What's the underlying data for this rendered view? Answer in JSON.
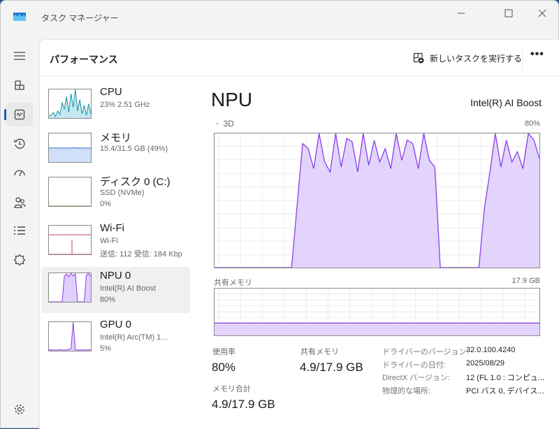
{
  "window": {
    "title": "タスク マネージャー"
  },
  "nav": {
    "items": [
      {
        "name": "menu",
        "icon": "hamburger-icon"
      },
      {
        "name": "processes",
        "icon": "processes-icon"
      },
      {
        "name": "performance",
        "icon": "performance-icon",
        "selected": true
      },
      {
        "name": "app-history",
        "icon": "history-icon"
      },
      {
        "name": "startup",
        "icon": "startup-gauge-icon"
      },
      {
        "name": "users",
        "icon": "users-icon"
      },
      {
        "name": "details",
        "icon": "list-icon"
      },
      {
        "name": "services",
        "icon": "services-icon"
      },
      {
        "name": "settings",
        "icon": "gear-icon"
      }
    ]
  },
  "header": {
    "title": "パフォーマンス",
    "run_task": "新しいタスクを実行する",
    "more": "•••"
  },
  "devices": [
    {
      "name": "CPU",
      "sub1": "23%  2.51 GHz",
      "sub2": "",
      "color": "#1b8fa8",
      "fill": "#c5e8ef",
      "spark": [
        3,
        4,
        8,
        2,
        10,
        5,
        22,
        12,
        30,
        8,
        34,
        15,
        40,
        10,
        26,
        6,
        18,
        4,
        20,
        6
      ]
    },
    {
      "name": "メモリ",
      "sub1": "15.4/31.5 GB (49%)",
      "sub2": "",
      "color": "#2f6fd1",
      "fill": "#cfe0f8",
      "spark": [
        49,
        49,
        49,
        49,
        49,
        49,
        49,
        49,
        49,
        49,
        49,
        50,
        49,
        49,
        49,
        49,
        49,
        49,
        49,
        49
      ]
    },
    {
      "name": "ディスク 0 (C:)",
      "sub1": "SSD (NVMe)",
      "sub2": "0%",
      "color": "#4f8f2f",
      "fill": "#dbeed0",
      "spark": [
        0,
        0,
        0,
        0,
        0,
        0,
        0,
        0,
        0,
        0,
        0,
        0,
        0,
        0,
        0,
        0,
        0,
        0,
        0,
        0
      ]
    },
    {
      "name": "Wi-Fi",
      "sub1": "Wi-Fi",
      "sub2": "送信: 112 受信: 184 Kbp",
      "color": "#c2456d",
      "fill": "#f5d3de",
      "spark": [
        0,
        0,
        0,
        0,
        0,
        0,
        0,
        0,
        0,
        0,
        0,
        0,
        0,
        0,
        0,
        0,
        0,
        0,
        0,
        0
      ]
    },
    {
      "name": "NPU 0",
      "sub1": "Intel(R) AI Boost",
      "sub2": "80%",
      "color": "#8b3de8",
      "fill": "#e0cffd",
      "selected": true,
      "spark": [
        0,
        0,
        0,
        0,
        0,
        0,
        0,
        72,
        78,
        70,
        80,
        72,
        78,
        0,
        0,
        0,
        0,
        75,
        80,
        70
      ]
    },
    {
      "name": "GPU 0",
      "sub1": "Intel(R) Arc(TM) 1...",
      "sub2": "5%",
      "color": "#8b3de8",
      "fill": "#e0cffd",
      "spark": [
        2,
        3,
        2,
        2,
        2,
        3,
        2,
        2,
        2,
        4,
        6,
        80,
        3,
        2,
        2,
        3,
        2,
        2,
        3,
        2
      ]
    }
  ],
  "detail": {
    "name": "NPU",
    "device": "Intel(R) AI Boost",
    "graph_label": "3D",
    "graph_max": "80%",
    "shared_label": "共有メモリ",
    "shared_max": "17.9 GB",
    "stats": {
      "usage_label": "使用率",
      "usage": "80%",
      "shared_label": "共有メモリ",
      "shared": "4.9/17.9 GB",
      "total_label": "メモリ合計",
      "total": "4.9/17.9 GB"
    },
    "info": [
      {
        "k": "ドライバーのバージョン:",
        "v": "32.0.100.4240"
      },
      {
        "k": "ドライバーの日付:",
        "v": "2025/08/29"
      },
      {
        "k": "DirectX バージョン:",
        "v": "12 (FL 1.0 : コンピュ..."
      },
      {
        "k": "物理的な場所:",
        "v": "PCI バス 0, デバイス..."
      }
    ]
  },
  "chart_data": [
    {
      "type": "area",
      "label": "3D",
      "ylim": [
        0,
        80
      ],
      "ymax_label": "80%",
      "grid": true,
      "color": "#8b3de8",
      "fill": "#e0cffd",
      "values": [
        0,
        0,
        0,
        0,
        0,
        0,
        0,
        0,
        0,
        0,
        0,
        0,
        0,
        0,
        0,
        37,
        74,
        71,
        59,
        80,
        63,
        57,
        80,
        60,
        77,
        75,
        57,
        80,
        61,
        76,
        63,
        71,
        59,
        80,
        64,
        76,
        74,
        59,
        80,
        64,
        60,
        0,
        0,
        0,
        0,
        0,
        0,
        0,
        0,
        35,
        57,
        80,
        60,
        76,
        63,
        69,
        59,
        80,
        76,
        65
      ]
    },
    {
      "type": "area",
      "label": "共有メモリ",
      "ylim": [
        0,
        17.9
      ],
      "ymax_label": "17.9 GB",
      "grid": true,
      "color": "#8b3de8",
      "fill": "#e0cffd",
      "level_fraction": 0.27
    }
  ]
}
